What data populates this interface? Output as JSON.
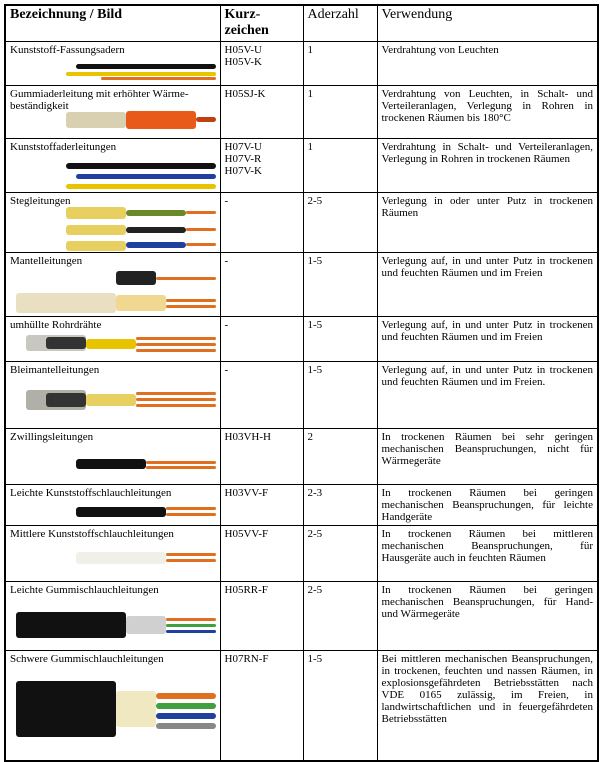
{
  "table": {
    "header": [
      "Bezeichnung / Bild",
      "Kurz-\nzeichen",
      "Aderzahl",
      "Verwendung"
    ],
    "rows": [
      [
        "Kunststoff-Fassungsadern",
        "H05V-U\nH05V-K",
        "1",
        "Verdrahtung von Leuchten"
      ],
      [
        "Gummiaderleitung mit erhöhter Wärme-beständigkeit",
        "H05SJ-K",
        "1",
        "Verdrahtung von Leuchten, in Schalt- und Verteileranlagen, Verlegung in Rohren in trockenen Räumen bis 180°C"
      ],
      [
        "Kunststoffaderleitungen",
        "H07V-U\nH07V-R\nH07V-K",
        "1",
        "Verdrahtung in Schalt- und Verteileranlagen, Verlegung in Rohren in trockenen Räumen"
      ],
      [
        "Stegleitungen",
        "-",
        "2-5",
        "Verlegung in oder unter Putz in trockenen Räumen"
      ],
      [
        "Mantelleitungen",
        "-",
        "1-5",
        "Verlegung auf, in und unter Putz in trockenen und feuchten Räumen und im Freien"
      ],
      [
        "umhüllte Rohrdrähte",
        "-",
        "1-5",
        "Verlegung auf, in und unter Putz in trockenen und feuchten Räumen und im Freien"
      ],
      [
        "Bleimantelleitungen",
        "-",
        "1-5",
        "Verlegung auf, in und unter Putz in trockenen und feuchten Räumen und im Freien."
      ],
      [
        "Zwillingsleitungen",
        "H03VH-H",
        "2",
        "In trockenen Räumen bei sehr geringen mechanischen Beanspruchungen, nicht für Wärmegeräte"
      ],
      [
        "Leichte Kunststoffschlauchleitungen",
        "H03VV-F",
        "2-3",
        "In trockenen Räumen bei geringen mechanischen Beanspruchungen, für leichte Handgeräte"
      ],
      [
        "Mittlere Kunststoffschlauchleitungen",
        "H05VV-F",
        "2-5",
        "In trockenen Räumen bei mittleren mechanischen Beanspruchungen, für Hausgeräte auch in feuchten Räumen"
      ],
      [
        "Leichte Gummischlauchleitungen",
        "H05RR-F",
        "2-5",
        "In trockenen Räumen bei geringen mechanischen Beanspruchungen, für Hand- und Wärmegeräte"
      ],
      [
        "Schwere Gummischlauchleitungen",
        "H07RN-F",
        "1-5",
        "Bei mittleren mechanischen Beanspruchungen, in trockenen, feuchten und nassen Räumen, in explosionsgefährdeten Betriebsstätten nach VDE 0165 zulässig, im Freien, in landwirtschaftlichen und in feuergefährdeten Betriebsstätten"
      ]
    ]
  }
}
